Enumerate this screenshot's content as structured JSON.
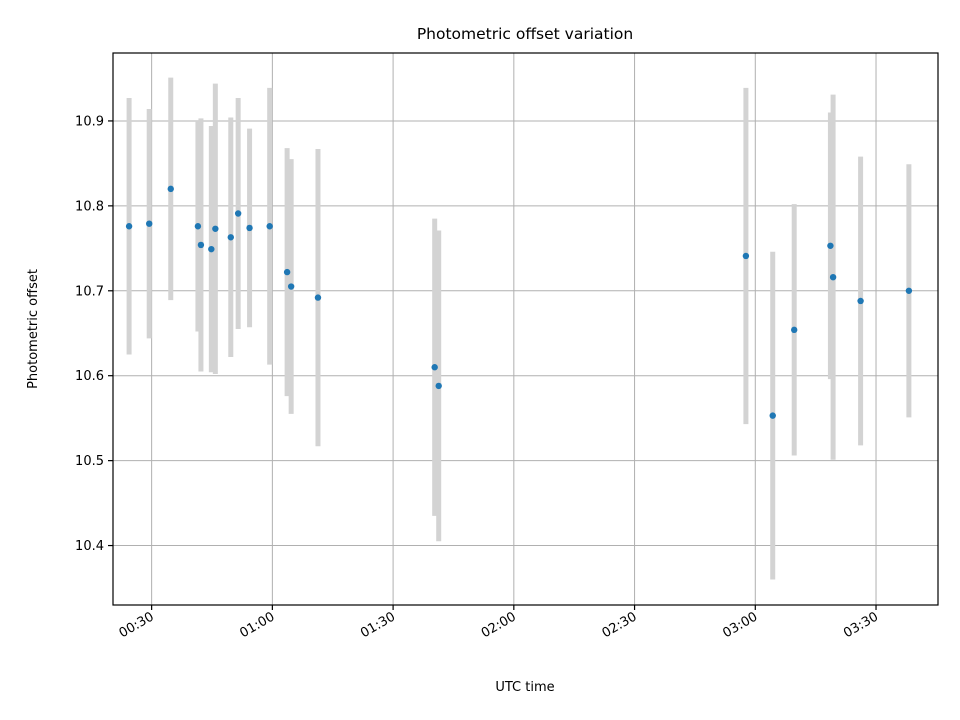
{
  "chart_data": {
    "type": "scatter",
    "title": "Photometric offset variation",
    "xlabel": "UTC time",
    "ylabel": "Photometric offset",
    "xlim": [
      "00:20:24",
      "03:45:24"
    ],
    "ylim": [
      10.33,
      10.98
    ],
    "xticks": [
      "00:30",
      "01:00",
      "01:30",
      "02:00",
      "02:30",
      "03:00",
      "03:30"
    ],
    "yticks": [
      10.4,
      10.5,
      10.6,
      10.7,
      10.8,
      10.9
    ],
    "grid": true,
    "marker_color": "#1f77b4",
    "errorbar_color": "#d3d3d3",
    "points": [
      {
        "time": "00:24:24",
        "value": 10.776,
        "err": 0.151
      },
      {
        "time": "00:29:24",
        "value": 10.779,
        "err": 0.135
      },
      {
        "time": "00:34:45",
        "value": 10.82,
        "err": 0.131
      },
      {
        "time": "00:41:30",
        "value": 10.776,
        "err": 0.124
      },
      {
        "time": "00:42:15",
        "value": 10.754,
        "err": 0.149
      },
      {
        "time": "00:44:50",
        "value": 10.749,
        "err": 0.145
      },
      {
        "time": "00:45:50",
        "value": 10.773,
        "err": 0.171
      },
      {
        "time": "00:49:40",
        "value": 10.763,
        "err": 0.141
      },
      {
        "time": "00:51:30",
        "value": 10.791,
        "err": 0.136
      },
      {
        "time": "00:54:20",
        "value": 10.774,
        "err": 0.117
      },
      {
        "time": "00:59:20",
        "value": 10.776,
        "err": 0.163
      },
      {
        "time": "01:03:40",
        "value": 10.722,
        "err": 0.146
      },
      {
        "time": "01:04:40",
        "value": 10.705,
        "err": 0.15
      },
      {
        "time": "01:11:20",
        "value": 10.692,
        "err": 0.175
      },
      {
        "time": "01:40:20",
        "value": 10.61,
        "err": 0.175
      },
      {
        "time": "01:41:20",
        "value": 10.588,
        "err": 0.183
      },
      {
        "time": "02:57:40",
        "value": 10.741,
        "err": 0.198
      },
      {
        "time": "03:04:20",
        "value": 10.553,
        "err": 0.193
      },
      {
        "time": "03:09:40",
        "value": 10.654,
        "err": 0.148
      },
      {
        "time": "03:18:40",
        "value": 10.753,
        "err": 0.157
      },
      {
        "time": "03:19:20",
        "value": 10.716,
        "err": 0.215
      },
      {
        "time": "03:26:10",
        "value": 10.688,
        "err": 0.17
      },
      {
        "time": "03:38:10",
        "value": 10.7,
        "err": 0.149
      }
    ]
  }
}
